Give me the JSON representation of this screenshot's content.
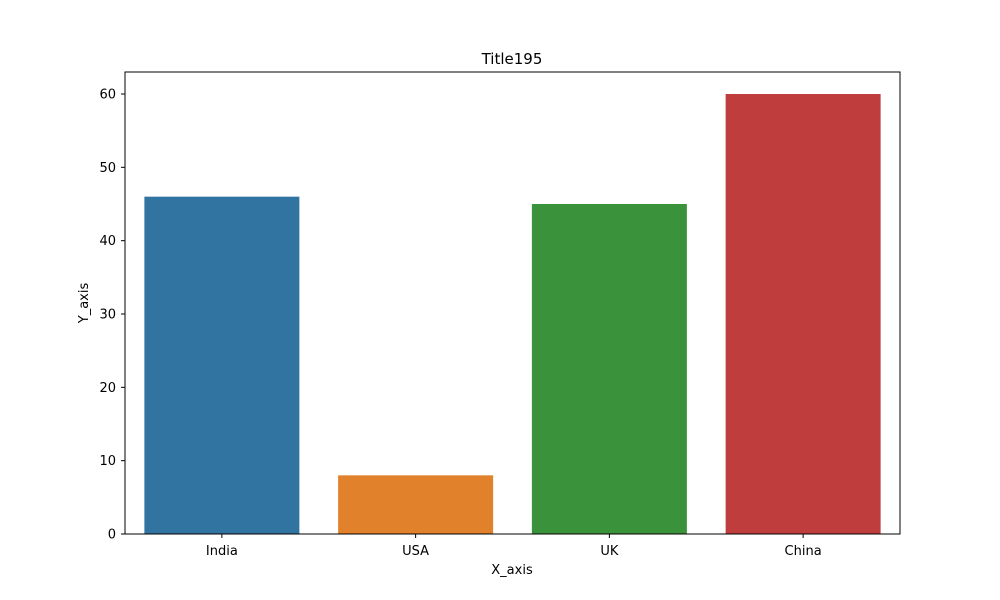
{
  "chart_data": {
    "type": "bar",
    "title": "Title195",
    "xlabel": "X_axis",
    "ylabel": "Y_axis",
    "categories": [
      "India",
      "USA",
      "UK",
      "China"
    ],
    "values": [
      46,
      8,
      45,
      60
    ],
    "colors": [
      "#3274a1",
      "#e1812c",
      "#3a923a",
      "#c03d3e"
    ],
    "ylim": [
      0,
      63
    ],
    "yticks": [
      0,
      10,
      20,
      30,
      40,
      50,
      60
    ],
    "grid": false,
    "legend": "none"
  }
}
